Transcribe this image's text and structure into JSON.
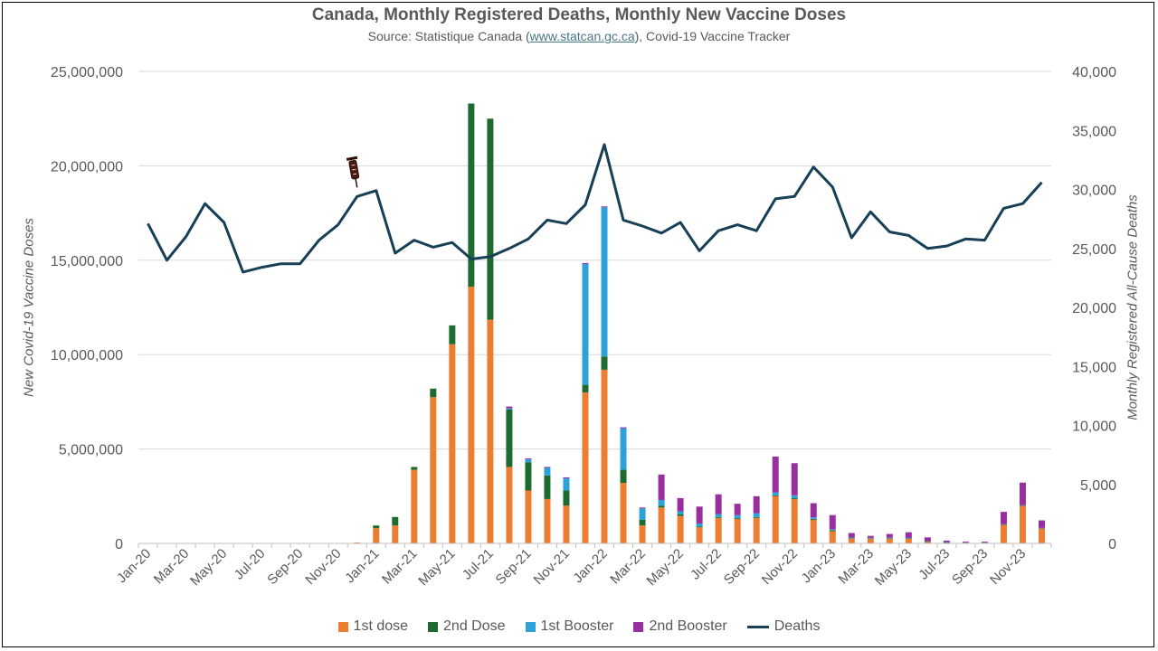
{
  "chart_data": {
    "type": "bar",
    "title": "Canada, Monthly Registered Deaths, Monthly New Vaccine Doses",
    "subtitle_prefix": "Source: Statistique Canada (",
    "subtitle_link": "www.statcan.gc.ca",
    "subtitle_suffix": "), Covid-19 Vaccine Tracker",
    "ylabel_left": "New Covid-19 Vaccine Doses",
    "ylabel_right": "Monthly Registered All-Cause Deaths",
    "ylim_left": [
      0,
      25000000
    ],
    "ylim_right": [
      0,
      40000
    ],
    "yticks_left": [
      "0",
      "5,000,000",
      "10,000,000",
      "15,000,000",
      "20,000,000",
      "25,000,000"
    ],
    "yticks_right": [
      "0",
      "5,000",
      "10,000",
      "15,000",
      "20,000",
      "25,000",
      "30,000",
      "35,000",
      "40,000"
    ],
    "grid": true,
    "legend_position": "bottom",
    "categories": [
      "Jan-20",
      "Feb-20",
      "Mar-20",
      "Apr-20",
      "May-20",
      "Jun-20",
      "Jul-20",
      "Aug-20",
      "Sep-20",
      "Oct-20",
      "Nov-20",
      "Dec-20",
      "Jan-21",
      "Feb-21",
      "Mar-21",
      "Apr-21",
      "May-21",
      "Jun-21",
      "Jul-21",
      "Aug-21",
      "Sep-21",
      "Oct-21",
      "Nov-21",
      "Dec-21",
      "Jan-22",
      "Feb-22",
      "Mar-22",
      "Apr-22",
      "May-22",
      "Jun-22",
      "Jul-22",
      "Aug-22",
      "Sep-22",
      "Oct-22",
      "Nov-22",
      "Dec-22",
      "Jan-23",
      "Feb-23",
      "Mar-23",
      "Apr-23",
      "May-23",
      "Jun-23",
      "Jul-23",
      "Aug-23",
      "Sep-23",
      "Oct-23",
      "Nov-23",
      "Dec-23"
    ],
    "x_tick_labels": [
      "Jan-20",
      "Mar-20",
      "May-20",
      "Jul-20",
      "Sep-20",
      "Nov-20",
      "Jan-21",
      "Mar-21",
      "May-21",
      "Jul-21",
      "Sep-21",
      "Nov-21",
      "Jan-22",
      "Mar-22",
      "May-22",
      "Jul-22",
      "Sep-22",
      "Nov-22",
      "Jan-23",
      "Mar-23",
      "May-23",
      "Jul-23",
      "Sep-23",
      "Nov-23"
    ],
    "series": [
      {
        "name": "1st dose",
        "color": "#ed7d31",
        "values": [
          0,
          0,
          0,
          0,
          0,
          0,
          0,
          0,
          0,
          0,
          0,
          50000,
          800000,
          950000,
          3900000,
          7750000,
          10550000,
          13600000,
          11850000,
          4050000,
          2800000,
          2350000,
          2000000,
          8000000,
          9200000,
          3200000,
          950000,
          1900000,
          1450000,
          850000,
          1350000,
          1300000,
          1350000,
          2500000,
          2350000,
          1250000,
          650000,
          250000,
          250000,
          250000,
          250000,
          100000,
          50000,
          20000,
          20000,
          1000000,
          2000000,
          800000
        ]
      },
      {
        "name": "2nd Dose",
        "color": "#1e6b30",
        "values": [
          0,
          0,
          0,
          0,
          0,
          0,
          0,
          0,
          0,
          0,
          0,
          0,
          150000,
          450000,
          150000,
          450000,
          1000000,
          9700000,
          10650000,
          3050000,
          1500000,
          1250000,
          800000,
          400000,
          700000,
          700000,
          300000,
          100000,
          100000,
          50000,
          50000,
          50000,
          50000,
          50000,
          50000,
          50000,
          50000,
          30000,
          30000,
          30000,
          20000,
          10000,
          10000,
          10000,
          10000,
          10000,
          10000,
          10000
        ]
      },
      {
        "name": "1st Booster",
        "color": "#2ba3d8",
        "values": [
          0,
          0,
          0,
          0,
          0,
          0,
          0,
          0,
          0,
          0,
          0,
          0,
          0,
          0,
          0,
          0,
          0,
          0,
          0,
          50000,
          150000,
          400000,
          650000,
          6400000,
          7900000,
          2200000,
          600000,
          300000,
          150000,
          150000,
          150000,
          150000,
          200000,
          150000,
          150000,
          80000,
          50000,
          20000,
          20000,
          20000,
          20000,
          10000,
          10000,
          10000,
          10000,
          10000,
          10000,
          10000
        ]
      },
      {
        "name": "2nd Booster",
        "color": "#982f9e",
        "values": [
          0,
          0,
          0,
          0,
          0,
          0,
          0,
          0,
          0,
          0,
          0,
          0,
          0,
          0,
          0,
          0,
          0,
          0,
          0,
          100000,
          50000,
          50000,
          50000,
          50000,
          50000,
          50000,
          50000,
          1350000,
          700000,
          900000,
          1050000,
          600000,
          900000,
          1900000,
          1700000,
          750000,
          750000,
          250000,
          100000,
          200000,
          300000,
          200000,
          80000,
          50000,
          50000,
          650000,
          1200000,
          400000
        ]
      },
      {
        "name": "Deaths",
        "color": "#173f56",
        "axis": "right",
        "type": "line",
        "values": [
          27100,
          24000,
          26000,
          28800,
          27200,
          23000,
          23400,
          23700,
          23700,
          25700,
          27000,
          29400,
          29900,
          24600,
          25700,
          25100,
          25500,
          24100,
          24300,
          25000,
          25800,
          27400,
          27100,
          28700,
          33800,
          27400,
          26900,
          26300,
          27200,
          24800,
          26500,
          27000,
          26500,
          29200,
          29400,
          31900,
          30200,
          25900,
          28100,
          26400,
          26100,
          25000,
          25200,
          25800,
          25700,
          28400,
          28800,
          30600
        ]
      }
    ],
    "annotation_icon": "syringe-icon",
    "annotation_category": "Dec-20"
  }
}
